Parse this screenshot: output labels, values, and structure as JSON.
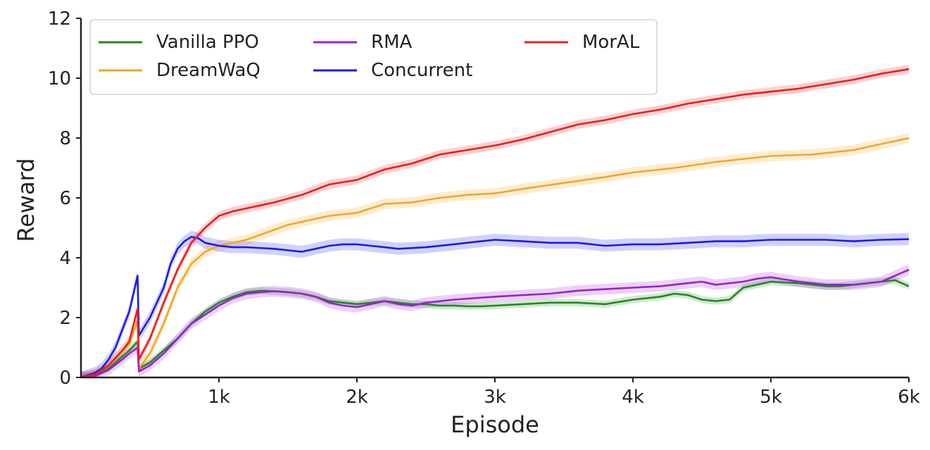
{
  "chart_data": {
    "type": "line",
    "xlabel": "Episode",
    "ylabel": "Reward",
    "xlim": [
      0,
      6000
    ],
    "ylim": [
      0,
      12
    ],
    "x_ticks": [
      {
        "value": 1000,
        "label": "1k"
      },
      {
        "value": 2000,
        "label": "2k"
      },
      {
        "value": 3000,
        "label": "3k"
      },
      {
        "value": 4000,
        "label": "4k"
      },
      {
        "value": 5000,
        "label": "5k"
      },
      {
        "value": 6000,
        "label": "6k"
      }
    ],
    "y_ticks": [
      {
        "value": 0,
        "label": "0"
      },
      {
        "value": 2,
        "label": "2"
      },
      {
        "value": 4,
        "label": "4"
      },
      {
        "value": 6,
        "label": "6"
      },
      {
        "value": 8,
        "label": "8"
      },
      {
        "value": 10,
        "label": "10"
      },
      {
        "value": 12,
        "label": "12"
      }
    ],
    "grid": false,
    "legend": {
      "placement": "top-left",
      "columns": 3
    },
    "series": [
      {
        "name": "Vanilla PPO",
        "color": "#1f8a1f",
        "band": 0.12,
        "x": [
          0,
          100,
          200,
          300,
          350,
          410,
          420,
          500,
          600,
          700,
          800,
          900,
          1000,
          1100,
          1200,
          1300,
          1400,
          1500,
          1600,
          1700,
          1800,
          1900,
          2000,
          2100,
          2200,
          2300,
          2400,
          2500,
          2600,
          2700,
          2800,
          2900,
          3000,
          3200,
          3400,
          3600,
          3800,
          4000,
          4200,
          4300,
          4400,
          4500,
          4600,
          4700,
          4800,
          4900,
          5000,
          5200,
          5400,
          5500,
          5600,
          5800,
          5900,
          6000
        ],
        "y": [
          0,
          0.05,
          0.3,
          0.7,
          0.9,
          1.2,
          0.3,
          0.5,
          0.9,
          1.3,
          1.8,
          2.2,
          2.5,
          2.7,
          2.85,
          2.9,
          2.88,
          2.85,
          2.8,
          2.7,
          2.55,
          2.5,
          2.45,
          2.5,
          2.55,
          2.5,
          2.45,
          2.45,
          2.4,
          2.4,
          2.38,
          2.38,
          2.4,
          2.45,
          2.5,
          2.5,
          2.45,
          2.6,
          2.7,
          2.8,
          2.75,
          2.6,
          2.55,
          2.6,
          3.0,
          3.1,
          3.2,
          3.15,
          3.05,
          3.05,
          3.1,
          3.2,
          3.25,
          3.05
        ]
      },
      {
        "name": "DreamWaQ",
        "color": "#f5a623",
        "band": 0.18,
        "x": [
          0,
          100,
          200,
          300,
          350,
          410,
          420,
          500,
          600,
          700,
          800,
          900,
          1000,
          1200,
          1500,
          1800,
          2000,
          2200,
          2400,
          2600,
          2800,
          3000,
          3200,
          3500,
          3800,
          4000,
          4300,
          4600,
          5000,
          5300,
          5600,
          5800,
          6000
        ],
        "y": [
          0,
          0.1,
          0.4,
          0.9,
          1.1,
          1.9,
          0.3,
          0.8,
          1.8,
          3.0,
          3.8,
          4.2,
          4.4,
          4.6,
          5.1,
          5.4,
          5.5,
          5.8,
          5.85,
          6.0,
          6.1,
          6.15,
          6.3,
          6.5,
          6.7,
          6.85,
          7.0,
          7.2,
          7.4,
          7.45,
          7.6,
          7.8,
          8.0
        ]
      },
      {
        "name": "RMA",
        "color": "#9b1fd4",
        "band": 0.18,
        "x": [
          0,
          100,
          200,
          300,
          350,
          410,
          420,
          500,
          600,
          700,
          800,
          900,
          1000,
          1100,
          1200,
          1300,
          1400,
          1500,
          1600,
          1700,
          1800,
          1900,
          2000,
          2100,
          2200,
          2300,
          2400,
          2500,
          2700,
          3000,
          3200,
          3400,
          3600,
          3800,
          4000,
          4200,
          4400,
          4500,
          4600,
          4800,
          4900,
          5000,
          5200,
          5400,
          5600,
          5800,
          6000
        ],
        "y": [
          0,
          0.05,
          0.25,
          0.6,
          0.8,
          1.0,
          0.2,
          0.4,
          0.8,
          1.3,
          1.8,
          2.1,
          2.4,
          2.65,
          2.8,
          2.85,
          2.88,
          2.85,
          2.8,
          2.7,
          2.5,
          2.4,
          2.35,
          2.45,
          2.55,
          2.45,
          2.4,
          2.5,
          2.6,
          2.7,
          2.75,
          2.8,
          2.9,
          2.95,
          3.0,
          3.05,
          3.15,
          3.2,
          3.1,
          3.2,
          3.3,
          3.35,
          3.2,
          3.1,
          3.1,
          3.2,
          3.6
        ]
      },
      {
        "name": "Concurrent",
        "color": "#1a1aee",
        "band": 0.2,
        "x": [
          0,
          100,
          150,
          200,
          250,
          300,
          350,
          410,
          420,
          500,
          600,
          650,
          700,
          750,
          800,
          850,
          900,
          1000,
          1100,
          1200,
          1400,
          1600,
          1700,
          1800,
          1900,
          2000,
          2100,
          2200,
          2300,
          2500,
          2700,
          2900,
          3000,
          3200,
          3400,
          3600,
          3800,
          4000,
          4200,
          4400,
          4600,
          4800,
          5000,
          5200,
          5400,
          5600,
          5800,
          6000
        ],
        "y": [
          0,
          0.15,
          0.3,
          0.6,
          1.0,
          1.6,
          2.2,
          3.4,
          1.4,
          2.0,
          3.0,
          3.8,
          4.3,
          4.55,
          4.7,
          4.65,
          4.5,
          4.4,
          4.35,
          4.35,
          4.3,
          4.2,
          4.3,
          4.4,
          4.45,
          4.45,
          4.4,
          4.35,
          4.3,
          4.35,
          4.45,
          4.55,
          4.6,
          4.55,
          4.5,
          4.5,
          4.4,
          4.45,
          4.45,
          4.5,
          4.55,
          4.55,
          4.6,
          4.6,
          4.6,
          4.55,
          4.6,
          4.62
        ]
      },
      {
        "name": "MorAL",
        "color": "#ee1c1c",
        "band": 0.15,
        "x": [
          0,
          100,
          200,
          300,
          350,
          410,
          420,
          500,
          600,
          700,
          800,
          850,
          900,
          950,
          1000,
          1100,
          1200,
          1400,
          1600,
          1800,
          2000,
          2200,
          2400,
          2600,
          2800,
          3000,
          3200,
          3400,
          3600,
          3800,
          4000,
          4200,
          4400,
          4600,
          4800,
          5000,
          5200,
          5400,
          5600,
          5800,
          6000
        ],
        "y": [
          0,
          0.1,
          0.4,
          0.9,
          1.2,
          2.3,
          0.6,
          1.3,
          2.5,
          3.6,
          4.5,
          4.75,
          5.0,
          5.2,
          5.4,
          5.55,
          5.65,
          5.85,
          6.1,
          6.45,
          6.6,
          6.95,
          7.15,
          7.45,
          7.6,
          7.75,
          7.95,
          8.2,
          8.45,
          8.6,
          8.8,
          8.95,
          9.15,
          9.3,
          9.45,
          9.55,
          9.65,
          9.8,
          9.95,
          10.15,
          10.3
        ]
      }
    ]
  }
}
